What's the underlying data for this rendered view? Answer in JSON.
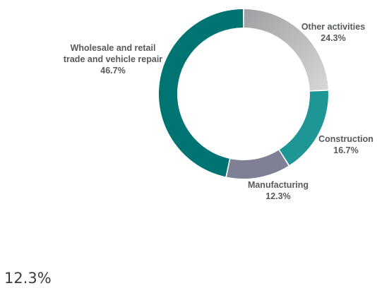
{
  "chart_data": {
    "type": "pie",
    "variant": "donut",
    "slices": [
      {
        "label_lines": [
          "Other activities"
        ],
        "value_label": "24.3%",
        "value": 24.3,
        "color": "#c3c4c5"
      },
      {
        "label_lines": [
          "Construction"
        ],
        "value_label": "16.7%",
        "value": 16.7,
        "color": "#1f9696"
      },
      {
        "label_lines": [
          "Manufacturing"
        ],
        "value_label": "12.3%",
        "value": 12.3,
        "color": "#7f7f96"
      },
      {
        "label_lines": [
          "Wholesale and retail",
          "trade and vehicle repair"
        ],
        "value_label": "46.7%",
        "value": 46.7,
        "color": "#007473"
      }
    ],
    "legend": "none"
  },
  "footer": {
    "value_text": "12.3%"
  }
}
